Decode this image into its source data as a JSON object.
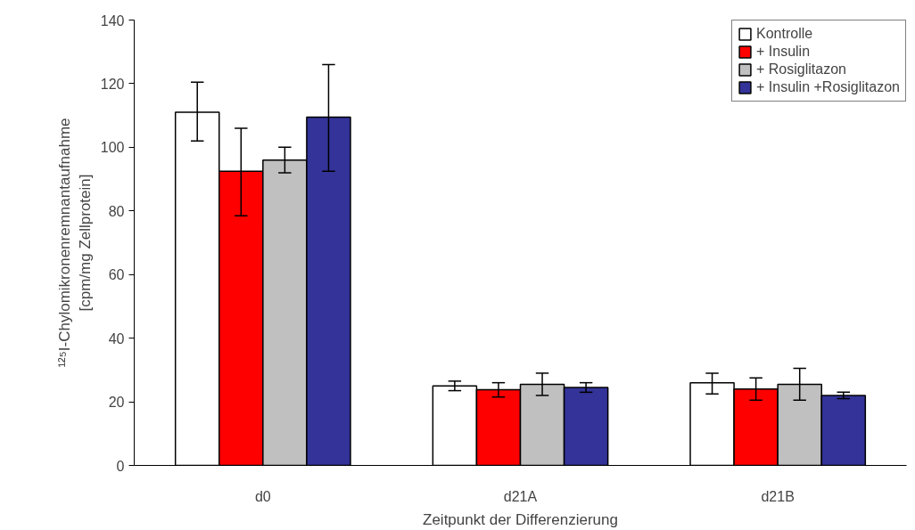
{
  "chart_data": {
    "type": "bar",
    "xlabel": "Zeitpunkt der Differenzierung",
    "ylabel": "¹²⁵I-Chylomikronenremnantaufnahme\n[cpm/mg Zellprotein]",
    "categories": [
      "d0",
      "d21A",
      "d21B"
    ],
    "series": [
      {
        "name": "Kontrolle",
        "color": "#ffffff",
        "values": [
          111,
          25,
          26
        ],
        "errors": [
          [
            102,
            120.5
          ],
          [
            23.5,
            26.5
          ],
          [
            22.5,
            29
          ]
        ]
      },
      {
        "name": "+ Insulin",
        "color": "#ff0000",
        "values": [
          92.5,
          23.8,
          24
        ],
        "errors": [
          [
            78.5,
            106
          ],
          [
            21.5,
            26
          ],
          [
            20.5,
            27.5
          ]
        ]
      },
      {
        "name": "+ Rosiglitazon",
        "color": "#c0c0c0",
        "values": [
          96,
          25.5,
          25.5
        ],
        "errors": [
          [
            92,
            100
          ],
          [
            22,
            29
          ],
          [
            20.5,
            30.5
          ]
        ]
      },
      {
        "name": "+ Insulin +Rosiglitazon",
        "color": "#333399",
        "values": [
          109.5,
          24.5,
          22
        ],
        "errors": [
          [
            92.5,
            126
          ],
          [
            23,
            26
          ],
          [
            21,
            23
          ]
        ]
      }
    ],
    "ylim": [
      0,
      140
    ],
    "yticks": [
      0,
      20,
      40,
      60,
      80,
      100,
      120,
      140
    ],
    "grid": false,
    "legend": "top right"
  }
}
